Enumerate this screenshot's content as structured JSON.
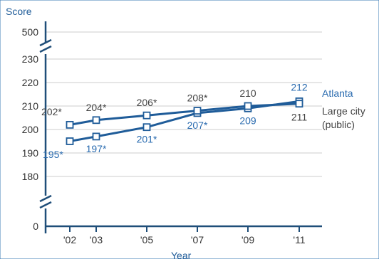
{
  "chart_data": {
    "type": "line",
    "title": "",
    "ylabel": "Score",
    "xlabel": "Year",
    "categories": [
      "'02",
      "'03",
      "'05",
      "'07",
      "'09",
      "'11"
    ],
    "x": [
      2002,
      2003,
      2005,
      2007,
      2009,
      2011
    ],
    "y_ticks": [
      "500",
      "230",
      "220",
      "210",
      "200",
      "190",
      "180",
      "0"
    ],
    "y_axis_break": {
      "top_tick": "500",
      "bottom_tick": "0",
      "visible_range": [
        180,
        230
      ]
    },
    "ylim": [
      180,
      230
    ],
    "grid": true,
    "series": [
      {
        "name": "Atlanta",
        "color": "#1f5c99",
        "values": [
          195,
          197,
          201,
          207,
          209,
          212
        ],
        "labels": [
          "195*",
          "197*",
          "201*",
          "207*",
          "209",
          "212"
        ]
      },
      {
        "name": "Large city (public)",
        "color": "#1f5c99",
        "values": [
          202,
          204,
          206,
          208,
          210,
          211
        ],
        "labels": [
          "202*",
          "204*",
          "206*",
          "208*",
          "210",
          "211"
        ]
      }
    ],
    "legend": {
      "atlanta": "Atlanta",
      "large_city_line1": "Large city",
      "large_city_line2": "(public)"
    },
    "colors": {
      "axis": "#1f4e79",
      "grid": "#cccccc",
      "atlanta_label": "#2b6cb0",
      "large_city_label": "#444444"
    }
  }
}
